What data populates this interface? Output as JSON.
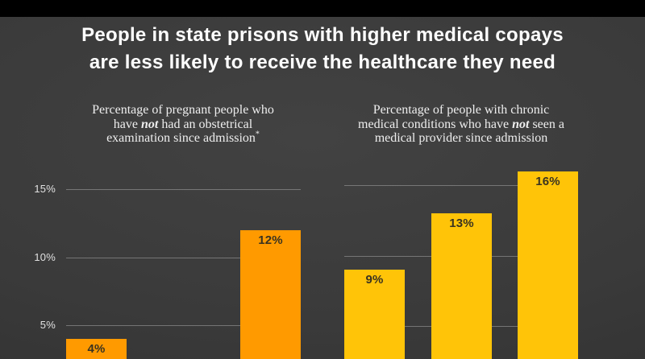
{
  "title": {
    "line1": "People in state prisons with higher medical copays",
    "line2": "are less likely to receive the healthcare they need"
  },
  "colors": {
    "letterbox": "#000000",
    "background_center": "#424242",
    "background_edge": "#303030",
    "title_text": "#ffffff",
    "subtitle_text": "#eeeeee",
    "gridline": "#9a9a9a",
    "axis_tick_text": "#e0e0e0",
    "bar_label_text": "#3a3320",
    "left_chart_bar_color": "#ff9a00",
    "right_chart_bar_color": "#ffc408"
  },
  "chart_data": [
    {
      "type": "bar",
      "panel": "left",
      "title": "Percentage of pregnant people who have not had an obstetrical examination since admission*",
      "title_lines": [
        [
          {
            "t": "Percentage of pregnant people who"
          }
        ],
        [
          {
            "t": "have "
          },
          {
            "t": "not",
            "bold_italic": true
          },
          {
            "t": " had an obstetrical"
          }
        ],
        [
          {
            "t": "examination since admission"
          },
          {
            "t": "*",
            "sup": true
          }
        ]
      ],
      "values": [
        4,
        12
      ],
      "bar_labels": [
        "4%",
        "12%"
      ],
      "bar_color": "#ff9a00",
      "ylim": [
        0,
        17
      ],
      "grid": true,
      "grid_values": [
        5,
        10,
        15
      ],
      "ytick_labels": [
        "5%",
        "10%",
        "15%"
      ],
      "legend_position": "none"
    },
    {
      "type": "bar",
      "panel": "right",
      "title": "Percentage of people with chronic medical conditions who have not seen a medical provider since admission",
      "title_lines": [
        [
          {
            "t": "Percentage of people with chronic"
          }
        ],
        [
          {
            "t": "medical conditions who have "
          },
          {
            "t": "not",
            "bold_italic": true
          },
          {
            "t": " seen a"
          }
        ],
        [
          {
            "t": "medical provider since admission"
          }
        ]
      ],
      "values": [
        9,
        13,
        16
      ],
      "bar_labels": [
        "9%",
        "13%",
        "16%"
      ],
      "bar_color": "#ffc408",
      "ylim": [
        0,
        17
      ],
      "grid": true,
      "grid_values": [
        5,
        10,
        15
      ],
      "ytick_labels": [],
      "legend_position": "none"
    }
  ]
}
